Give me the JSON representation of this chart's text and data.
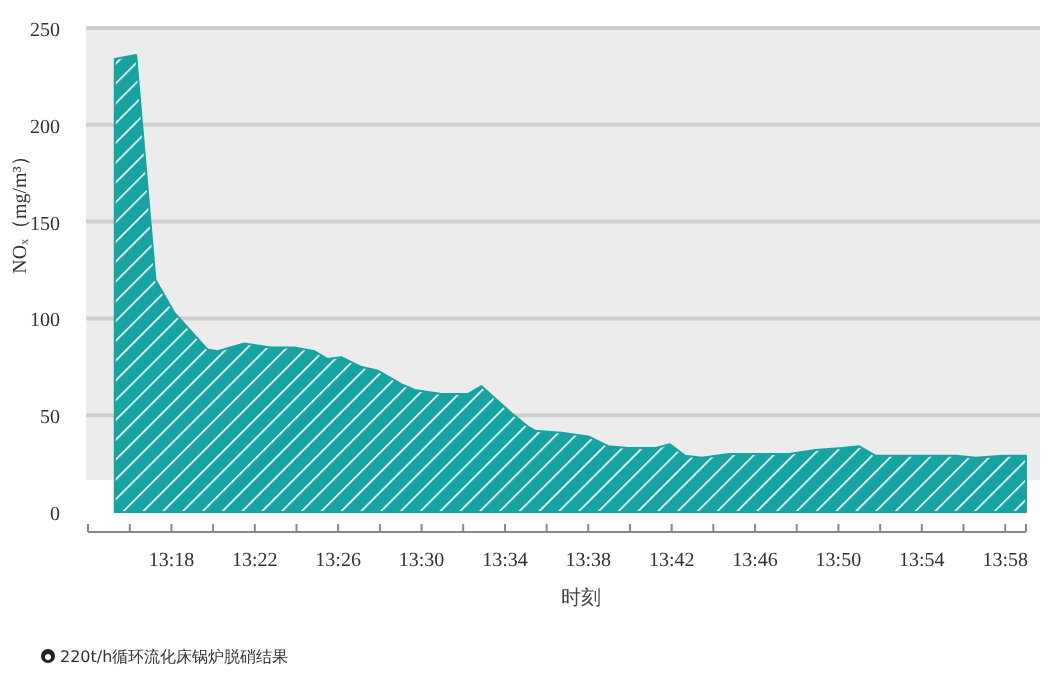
{
  "chart_data": {
    "type": "area",
    "xlabel": "时刻",
    "ylabel": "NOₓ（mg/m³）",
    "annotations": [
      "220t/h循环流化床锅炉脱硝结果"
    ],
    "xlim": [
      13.2333,
      13.9833
    ],
    "xticks": [
      {
        "value": 13.2333,
        "label": null
      },
      {
        "value": 13.2667,
        "label": null
      },
      {
        "value": 13.3,
        "label": "13:18"
      },
      {
        "value": 13.3333,
        "label": null
      },
      {
        "value": 13.3667,
        "label": "13:22"
      },
      {
        "value": 13.4,
        "label": null
      },
      {
        "value": 13.4333,
        "label": "13:26"
      },
      {
        "value": 13.4667,
        "label": null
      },
      {
        "value": 13.5,
        "label": "13:30"
      },
      {
        "value": 13.5333,
        "label": null
      },
      {
        "value": 13.5667,
        "label": "13:34"
      },
      {
        "value": 13.6,
        "label": null
      },
      {
        "value": 13.6333,
        "label": "13:38"
      },
      {
        "value": 13.6667,
        "label": null
      },
      {
        "value": 13.7,
        "label": "13:42"
      },
      {
        "value": 13.7333,
        "label": null
      },
      {
        "value": 13.7667,
        "label": "13:46"
      },
      {
        "value": 13.8,
        "label": null
      },
      {
        "value": 13.8333,
        "label": "13:50"
      },
      {
        "value": 13.8667,
        "label": null
      },
      {
        "value": 13.9,
        "label": "13:54"
      },
      {
        "value": 13.9333,
        "label": null
      },
      {
        "value": 13.9667,
        "label": "13:58"
      },
      {
        "value": 13.9833,
        "label": null
      }
    ],
    "ylim": [
      0,
      250
    ],
    "yticks": [
      0,
      50,
      100,
      150,
      200,
      250
    ],
    "grid": "y",
    "x": [
      13.2547,
      13.2718,
      13.2872,
      13.3022,
      13.3288,
      13.3368,
      13.3583,
      13.3688,
      13.3797,
      13.3983,
      13.4145,
      13.425,
      13.4357,
      13.4517,
      13.465,
      13.4838,
      13.4945,
      13.516,
      13.5372,
      13.548,
      13.572,
      13.5853,
      13.5907,
      13.612,
      13.6333,
      13.6493,
      13.6653,
      13.6868,
      13.6985,
      13.7108,
      13.7242,
      13.7455,
      13.7723,
      13.7937,
      13.815,
      13.8363,
      13.8497,
      13.8632,
      13.9005,
      13.9272,
      13.9433,
      13.9647,
      13.9833
    ],
    "series": [
      {
        "color": "#17a3a1",
        "values": [
          234,
          236,
          120,
          103,
          84,
          83,
          87,
          86,
          85,
          85,
          83,
          79,
          80,
          75,
          73,
          66,
          63,
          61,
          61,
          65,
          51,
          44,
          42,
          41,
          39,
          34,
          33,
          33,
          35,
          29,
          28,
          30,
          30,
          30,
          32,
          33,
          34,
          29,
          29,
          29,
          28,
          29,
          29
        ]
      }
    ]
  }
}
